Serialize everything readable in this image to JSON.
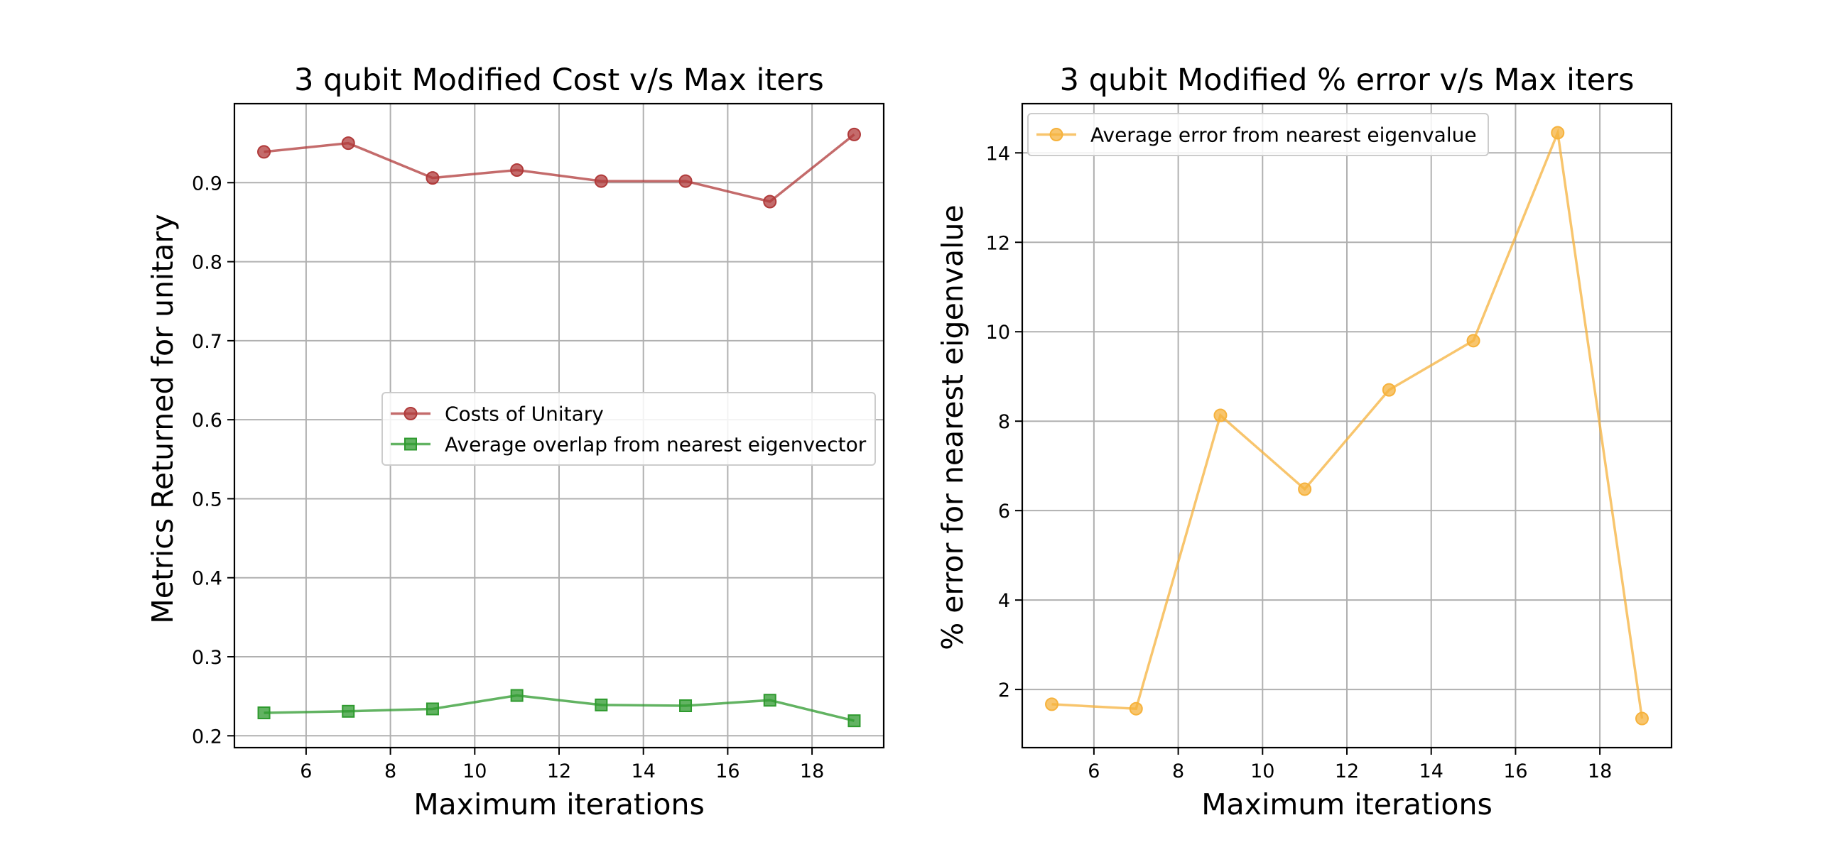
{
  "chart_data": [
    {
      "type": "line",
      "title": "3 qubit Modified Cost v/s Max iters",
      "xlabel": "Maximum iterations",
      "ylabel": "Metrics Returned for unitary",
      "xlim": [
        4.3,
        19.7
      ],
      "ylim": [
        0.185,
        1.0
      ],
      "xticks": [
        6,
        8,
        10,
        12,
        14,
        16,
        18
      ],
      "yticks": [
        0.2,
        0.3,
        0.4,
        0.5,
        0.6,
        0.7,
        0.8,
        0.9
      ],
      "grid": true,
      "legend_position": "center-right",
      "x": [
        5,
        7,
        9,
        11,
        13,
        15,
        17,
        19
      ],
      "series": [
        {
          "name": "Costs of Unitary",
          "marker": "circle",
          "color": "#b03a3a",
          "values": [
            0.939,
            0.95,
            0.906,
            0.916,
            0.902,
            0.902,
            0.876,
            0.961
          ]
        },
        {
          "name": "Average overlap from nearest eigenvector",
          "marker": "square",
          "color": "#2e9a2e",
          "values": [
            0.229,
            0.231,
            0.234,
            0.251,
            0.239,
            0.238,
            0.245,
            0.219
          ]
        }
      ]
    },
    {
      "type": "line",
      "title": "3 qubit Modified % error v/s Max iters",
      "xlabel": "Maximum iterations",
      "ylabel": "% error for nearest eigenvalue",
      "xlim": [
        4.3,
        19.7
      ],
      "ylim": [
        0.7,
        15.1
      ],
      "xticks": [
        6,
        8,
        10,
        12,
        14,
        16,
        18
      ],
      "yticks": [
        2,
        4,
        6,
        8,
        10,
        12,
        14
      ],
      "grid": true,
      "legend_position": "top-left",
      "x": [
        5,
        7,
        9,
        11,
        13,
        15,
        17,
        19
      ],
      "series": [
        {
          "name": "Average error from nearest eigenvalue",
          "marker": "circle",
          "color": "#f6b23c",
          "values": [
            1.67,
            1.57,
            8.13,
            6.48,
            8.7,
            9.8,
            14.45,
            1.35
          ]
        }
      ]
    }
  ]
}
